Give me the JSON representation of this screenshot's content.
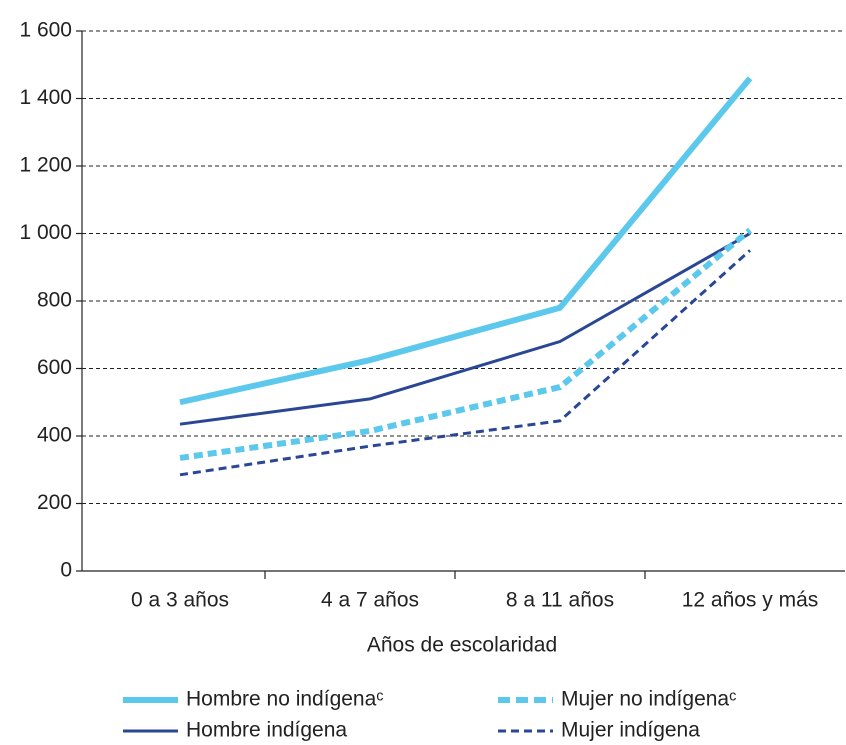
{
  "chart_data": {
    "type": "line",
    "categories": [
      "0 a 3 años",
      "4 a 7 años",
      "8 a 11 años",
      "12 años y más"
    ],
    "xlabel": "Años de escolaridad",
    "series": [
      {
        "name": "Hombre no indígenaᶜ",
        "color": "#5bc8ec",
        "linestyle": "solid",
        "values": [
          500,
          625,
          780,
          1460
        ]
      },
      {
        "name": "Mujer no indígenaᶜ",
        "color": "#5bc8ec",
        "linestyle": "dashed",
        "values": [
          335,
          415,
          545,
          1010
        ]
      },
      {
        "name": "Hombre indígena",
        "color": "#2a4796",
        "linestyle": "solid",
        "values": [
          435,
          510,
          680,
          1000
        ]
      },
      {
        "name": "Mujer indígena",
        "color": "#2a4796",
        "linestyle": "dashed",
        "values": [
          285,
          370,
          445,
          950
        ]
      }
    ],
    "ylim": [
      0,
      1600
    ],
    "yticks": [
      0,
      200,
      400,
      600,
      800,
      {
        "value": 1000,
        "label": "1 000"
      },
      {
        "value": 1200,
        "label": "1 200"
      },
      {
        "value": 1400,
        "label": "1 400"
      },
      {
        "value": 1600,
        "label": "1 600"
      }
    ],
    "grid": true
  }
}
